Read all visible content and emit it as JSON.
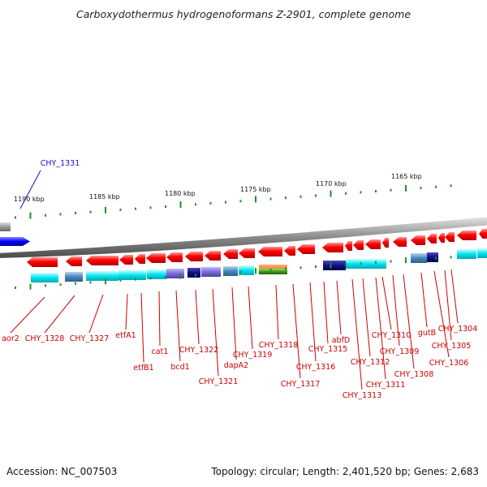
{
  "title": "Carboxydothermus hydrogenoformans Z-2901, complete genome",
  "footer": {
    "accession": "Accession: NC_007503",
    "topology": "Topology: circular; Length: 2,401,520 bp; Genes: 2,683"
  },
  "scale": {
    "ticks": [
      "1190 kbp",
      "1185 kbp",
      "1180 kbp",
      "1175 kbp",
      "1170 kbp",
      "1165 kbp"
    ]
  },
  "highlight": {
    "label": "CHY_1331",
    "color": "#1010c0"
  },
  "genes": [
    "aor2",
    "CHY_1328",
    "CHY_1327",
    "etfA1",
    "etfB1",
    "cat1",
    "bcd1",
    "CHY_1322",
    "CHY_1321",
    "dapA2",
    "CHY_1319",
    "CHY_1318",
    "CHY_1317",
    "CHY_1316",
    "CHY_1315",
    "abfD",
    "CHY_1313",
    "CHY_1312",
    "CHY_1311",
    "CHY_1310",
    "CHY_1309",
    "CHY_1308",
    "gutB",
    "CHY_1306",
    "CHY_1305",
    "CHY_1304"
  ],
  "colors": {
    "gene_strand": "#ff0000",
    "label": "#cc0000",
    "tick": "#2a8a2a",
    "cog_cyan": "#00e5ee",
    "backbone": "#8a8a8a"
  }
}
